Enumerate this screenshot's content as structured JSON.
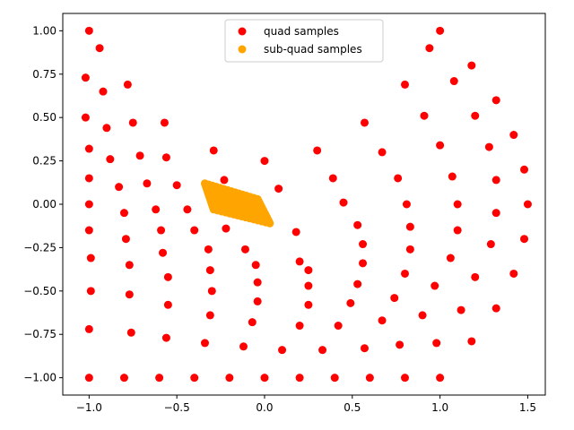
{
  "chart_data": {
    "type": "scatter",
    "xlim": [
      -1.15,
      1.6
    ],
    "ylim": [
      -1.1,
      1.1
    ],
    "x_ticks": [
      -1.0,
      -0.5,
      0.0,
      0.5,
      1.0,
      1.5
    ],
    "x_tick_labels": [
      "−1.0",
      "−0.5",
      "0.0",
      "0.5",
      "1.0",
      "1.5"
    ],
    "y_ticks": [
      -1.0,
      -0.75,
      -0.5,
      -0.25,
      0.0,
      0.25,
      0.5,
      0.75,
      1.0
    ],
    "y_tick_labels": [
      "−1.00",
      "−0.75",
      "−0.50",
      "−0.25",
      "0.00",
      "0.25",
      "0.50",
      "0.75",
      "1.00"
    ],
    "grid": false,
    "legend_position": "upper-center",
    "series": [
      {
        "name": "quad samples",
        "color": "#ff0000",
        "points": [
          [
            -1.0,
            -1.0
          ],
          [
            -0.8,
            -1.0
          ],
          [
            -0.6,
            -1.0
          ],
          [
            -0.4,
            -1.0
          ],
          [
            -0.2,
            -1.0
          ],
          [
            0.0,
            -1.0
          ],
          [
            0.2,
            -1.0
          ],
          [
            0.4,
            -1.0
          ],
          [
            0.6,
            -1.0
          ],
          [
            0.8,
            -1.0
          ],
          [
            1.0,
            -1.0
          ],
          [
            -1.0,
            -0.72
          ],
          [
            -0.76,
            -0.74
          ],
          [
            -0.56,
            -0.77
          ],
          [
            -0.34,
            -0.8
          ],
          [
            -0.12,
            -0.82
          ],
          [
            0.1,
            -0.84
          ],
          [
            0.33,
            -0.84
          ],
          [
            0.57,
            -0.83
          ],
          [
            0.77,
            -0.81
          ],
          [
            0.98,
            -0.8
          ],
          [
            1.18,
            -0.79
          ],
          [
            -0.99,
            -0.5
          ],
          [
            -0.77,
            -0.52
          ],
          [
            -0.55,
            -0.58
          ],
          [
            -0.31,
            -0.64
          ],
          [
            -0.07,
            -0.68
          ],
          [
            0.2,
            -0.7
          ],
          [
            0.42,
            -0.7
          ],
          [
            0.67,
            -0.67
          ],
          [
            0.9,
            -0.64
          ],
          [
            1.12,
            -0.61
          ],
          [
            1.32,
            -0.6
          ],
          [
            -0.99,
            -0.31
          ],
          [
            -0.77,
            -0.35
          ],
          [
            -0.55,
            -0.42
          ],
          [
            -0.3,
            -0.5
          ],
          [
            -0.04,
            -0.56
          ],
          [
            0.25,
            -0.58
          ],
          [
            0.49,
            -0.57
          ],
          [
            0.74,
            -0.54
          ],
          [
            0.97,
            -0.47
          ],
          [
            1.2,
            -0.42
          ],
          [
            1.42,
            -0.4
          ],
          [
            -1.0,
            -0.15
          ],
          [
            -0.79,
            -0.2
          ],
          [
            -0.58,
            -0.28
          ],
          [
            -0.31,
            -0.38
          ],
          [
            -0.04,
            -0.45
          ],
          [
            0.25,
            -0.47
          ],
          [
            0.53,
            -0.46
          ],
          [
            0.8,
            -0.4
          ],
          [
            1.06,
            -0.31
          ],
          [
            1.29,
            -0.23
          ],
          [
            1.48,
            -0.2
          ],
          [
            -1.0,
            0.0
          ],
          [
            -0.8,
            -0.05
          ],
          [
            -0.59,
            -0.15
          ],
          [
            -0.32,
            -0.26
          ],
          [
            -0.05,
            -0.35
          ],
          [
            0.25,
            -0.38
          ],
          [
            0.56,
            -0.34
          ],
          [
            0.83,
            -0.26
          ],
          [
            1.1,
            -0.15
          ],
          [
            1.32,
            -0.05
          ],
          [
            1.5,
            0.0
          ],
          [
            -1.0,
            0.15
          ],
          [
            -0.83,
            0.1
          ],
          [
            -0.62,
            -0.03
          ],
          [
            -0.4,
            -0.15
          ],
          [
            -0.11,
            -0.26
          ],
          [
            0.2,
            -0.33
          ],
          [
            0.56,
            -0.23
          ],
          [
            0.83,
            -0.13
          ],
          [
            1.1,
            0.0
          ],
          [
            1.32,
            0.14
          ],
          [
            1.48,
            0.2
          ],
          [
            -1.0,
            0.32
          ],
          [
            -0.88,
            0.26
          ],
          [
            -0.67,
            0.12
          ],
          [
            -0.44,
            -0.03
          ],
          [
            -0.22,
            -0.14
          ],
          [
            0.18,
            -0.16
          ],
          [
            0.53,
            -0.12
          ],
          [
            0.81,
            0.0
          ],
          [
            1.07,
            0.16
          ],
          [
            1.28,
            0.33
          ],
          [
            1.42,
            0.4
          ],
          [
            -1.02,
            0.5
          ],
          [
            -0.9,
            0.44
          ],
          [
            -0.71,
            0.28
          ],
          [
            -0.5,
            0.11
          ],
          [
            -0.23,
            0.14
          ],
          [
            0.08,
            0.09
          ],
          [
            0.45,
            0.01
          ],
          [
            0.76,
            0.15
          ],
          [
            1.0,
            0.34
          ],
          [
            1.2,
            0.51
          ],
          [
            1.32,
            0.6
          ],
          [
            -1.02,
            0.73
          ],
          [
            -0.92,
            0.65
          ],
          [
            -0.75,
            0.47
          ],
          [
            -0.56,
            0.27
          ],
          [
            -0.29,
            0.31
          ],
          [
            0.0,
            0.25
          ],
          [
            0.3,
            0.31
          ],
          [
            0.67,
            0.3
          ],
          [
            0.91,
            0.51
          ],
          [
            1.08,
            0.71
          ],
          [
            1.18,
            0.8
          ],
          [
            -1.0,
            1.0
          ],
          [
            -0.94,
            0.9
          ],
          [
            -0.78,
            0.69
          ],
          [
            -0.57,
            0.47
          ],
          [
            0.57,
            0.47
          ],
          [
            0.8,
            0.69
          ],
          [
            0.94,
            0.9
          ],
          [
            1.0,
            1.0
          ],
          [
            0.39,
            0.15
          ]
        ]
      },
      {
        "name": "sub-quad samples",
        "color": "#ffa500",
        "region": {
          "corners": [
            [
              -0.34,
              0.12
            ],
            [
              -0.04,
              0.03
            ],
            [
              0.03,
              -0.11
            ],
            [
              -0.29,
              -0.03
            ]
          ],
          "grid": 14
        }
      }
    ]
  }
}
